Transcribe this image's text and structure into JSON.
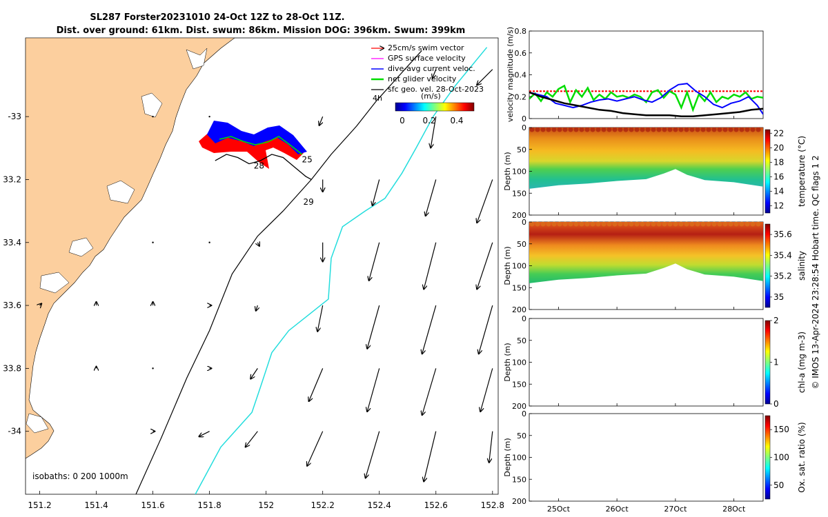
{
  "title": {
    "line1": "SL287 Forster20231010 24-Oct 12Z to 28-Oct 11Z.",
    "line2": "Dist. over ground: 61km. Dist. swum: 86km. Mission DOG: 396km. Swum: 399km"
  },
  "credit": "© IMOS 13-Apr-2024 23:28:54 Hobart time. QC flags 1 2",
  "colors": {
    "land": "#fccf9e",
    "swim_vector": "#ff0000",
    "gps_velocity": "#ff00ff",
    "dive_avg": "#0000ff",
    "net_velocity": "#00dd00",
    "geo_vel": "#000000",
    "isobath_200": "#000000",
    "isobath_1000": "#22dddd",
    "threshold": "#ff0000",
    "temp_warm": "#c84a14",
    "temp_cool": "#2ab6b0"
  },
  "chart_data": [
    {
      "id": "map",
      "type": "scatter",
      "xlabel": "",
      "ylabel": "",
      "xlim": [
        151.15,
        152.82
      ],
      "ylim": [
        -34.2,
        -32.75
      ],
      "x_ticks": [
        "151.2",
        "151.4",
        "151.6",
        "151.8",
        "152",
        "152.2",
        "152.4",
        "152.6",
        "152.8"
      ],
      "x_tick_values": [
        151.2,
        151.4,
        151.6,
        151.8,
        152.0,
        152.2,
        152.4,
        152.6,
        152.8
      ],
      "y_ticks": [
        "-33",
        "33.2",
        "33.4",
        "33.6",
        "33.8",
        "-34"
      ],
      "y_tick_values": [
        -33.0,
        -33.2,
        -33.4,
        -33.6,
        -33.8,
        -34.0
      ],
      "legend": {
        "placement": "top-right",
        "entries": [
          "25cm/s swim vector",
          "GPS surface velocity",
          "dive-avg current veloc.",
          "net glider velocity",
          "sfc geo. vel. 28-Oct-2023"
        ],
        "extra": "4h"
      },
      "colorbar": {
        "label": "(m/s)",
        "ticks": [
          "0",
          "0.2",
          "0.4"
        ]
      },
      "isobath_label": "isobaths: 0   200  1000m",
      "day_labels": [
        {
          "text": "28",
          "lon": 151.975,
          "lat": -33.165
        },
        {
          "text": "25",
          "lon": 152.145,
          "lat": -33.145
        },
        {
          "text": "29",
          "lon": 152.15,
          "lat": -33.28
        }
      ],
      "isobath_200": [
        [
          151.54,
          -34.2
        ],
        [
          151.63,
          -34.02
        ],
        [
          151.72,
          -33.83
        ],
        [
          151.8,
          -33.68
        ],
        [
          151.88,
          -33.5
        ],
        [
          151.97,
          -33.38
        ],
        [
          152.06,
          -33.3
        ],
        [
          152.16,
          -33.2
        ],
        [
          152.23,
          -33.12
        ],
        [
          152.32,
          -33.03
        ],
        [
          152.39,
          -32.95
        ],
        [
          152.46,
          -32.88
        ],
        [
          152.55,
          -32.79
        ]
      ],
      "isobath_1000": [
        [
          151.75,
          -34.2
        ],
        [
          151.84,
          -34.05
        ],
        [
          151.95,
          -33.94
        ],
        [
          151.98,
          -33.86
        ],
        [
          152.02,
          -33.75
        ],
        [
          152.08,
          -33.68
        ],
        [
          152.15,
          -33.63
        ],
        [
          152.22,
          -33.58
        ],
        [
          152.23,
          -33.45
        ],
        [
          152.27,
          -33.35
        ],
        [
          152.35,
          -33.3
        ],
        [
          152.42,
          -33.26
        ],
        [
          152.48,
          -33.18
        ],
        [
          152.53,
          -33.1
        ],
        [
          152.59,
          -33.0
        ],
        [
          152.67,
          -32.9
        ],
        [
          152.78,
          -32.78
        ]
      ],
      "geo_vectors": [
        {
          "lon": 151.2,
          "lat": -33.6,
          "u": 0.01,
          "v": 0.01
        },
        {
          "lon": 151.4,
          "lat": -33.6,
          "u": 0.0,
          "v": 0.02
        },
        {
          "lon": 151.6,
          "lat": -33.6,
          "u": 0.0,
          "v": 0.02
        },
        {
          "lon": 151.8,
          "lat": -33.6,
          "u": 0.01,
          "v": 0.0
        },
        {
          "lon": 151.97,
          "lat": -33.6,
          "u": -0.01,
          "v": -0.03
        },
        {
          "lon": 151.4,
          "lat": -33.8,
          "u": 0.0,
          "v": 0.01
        },
        {
          "lon": 151.6,
          "lat": -33.8,
          "u": 0.0,
          "v": 0.0
        },
        {
          "lon": 151.8,
          "lat": -33.8,
          "u": 0.01,
          "v": 0.0
        },
        {
          "lon": 151.97,
          "lat": -33.8,
          "u": -0.04,
          "v": -0.06
        },
        {
          "lon": 151.6,
          "lat": -34.0,
          "u": 0.01,
          "v": 0.0
        },
        {
          "lon": 151.8,
          "lat": -34.0,
          "u": -0.06,
          "v": -0.03
        },
        {
          "lon": 151.97,
          "lat": -34.0,
          "u": -0.07,
          "v": -0.09
        },
        {
          "lon": 151.8,
          "lat": -33.4,
          "u": 0.0,
          "v": 0.0
        },
        {
          "lon": 151.6,
          "lat": -33.4,
          "u": 0.0,
          "v": 0.0
        },
        {
          "lon": 151.6,
          "lat": -33.0,
          "u": 0.0,
          "v": 0.0
        },
        {
          "lon": 151.8,
          "lat": -33.0,
          "u": 0.0,
          "v": 0.0
        },
        {
          "lon": 151.97,
          "lat": -33.4,
          "u": 0.01,
          "v": -0.02
        },
        {
          "lon": 152.2,
          "lat": -33.0,
          "u": -0.02,
          "v": -0.05
        },
        {
          "lon": 152.2,
          "lat": -33.2,
          "u": 0.0,
          "v": -0.07
        },
        {
          "lon": 152.2,
          "lat": -33.4,
          "u": 0.0,
          "v": -0.11
        },
        {
          "lon": 152.2,
          "lat": -33.6,
          "u": -0.03,
          "v": -0.15
        },
        {
          "lon": 152.2,
          "lat": -33.8,
          "u": -0.08,
          "v": -0.19
        },
        {
          "lon": 152.2,
          "lat": -34.0,
          "u": -0.09,
          "v": -0.2
        },
        {
          "lon": 152.4,
          "lat": -33.2,
          "u": -0.04,
          "v": -0.15
        },
        {
          "lon": 152.4,
          "lat": -33.4,
          "u": -0.06,
          "v": -0.22
        },
        {
          "lon": 152.4,
          "lat": -33.6,
          "u": -0.07,
          "v": -0.25
        },
        {
          "lon": 152.4,
          "lat": -33.8,
          "u": -0.07,
          "v": -0.25
        },
        {
          "lon": 152.4,
          "lat": -34.0,
          "u": -0.08,
          "v": -0.27
        },
        {
          "lon": 152.6,
          "lat": -32.85,
          "u": -0.02,
          "v": -0.05
        },
        {
          "lon": 152.6,
          "lat": -33.0,
          "u": -0.03,
          "v": -0.18
        },
        {
          "lon": 152.6,
          "lat": -33.2,
          "u": -0.06,
          "v": -0.21
        },
        {
          "lon": 152.6,
          "lat": -33.4,
          "u": -0.07,
          "v": -0.27
        },
        {
          "lon": 152.6,
          "lat": -33.6,
          "u": -0.08,
          "v": -0.28
        },
        {
          "lon": 152.6,
          "lat": -33.8,
          "u": -0.08,
          "v": -0.27
        },
        {
          "lon": 152.6,
          "lat": -34.0,
          "u": -0.07,
          "v": -0.29
        },
        {
          "lon": 152.8,
          "lat": -32.85,
          "u": -0.09,
          "v": -0.09
        },
        {
          "lon": 152.8,
          "lat": -33.2,
          "u": -0.09,
          "v": -0.25
        },
        {
          "lon": 152.8,
          "lat": -33.4,
          "u": -0.09,
          "v": -0.27
        },
        {
          "lon": 152.8,
          "lat": -33.6,
          "u": -0.08,
          "v": -0.28
        },
        {
          "lon": 152.8,
          "lat": -33.8,
          "u": -0.07,
          "v": -0.25
        },
        {
          "lon": 152.8,
          "lat": -34.0,
          "u": -0.02,
          "v": -0.18
        }
      ],
      "track": [
        [
          151.82,
          -33.14
        ],
        [
          151.86,
          -33.12
        ],
        [
          151.9,
          -33.13
        ],
        [
          151.94,
          -33.15
        ],
        [
          151.98,
          -33.14
        ],
        [
          152.02,
          -33.12
        ],
        [
          152.06,
          -33.13
        ],
        [
          152.1,
          -33.16
        ],
        [
          152.14,
          -33.19
        ],
        [
          152.16,
          -33.2
        ]
      ]
    },
    {
      "id": "velocity",
      "type": "line",
      "xlabel": "",
      "ylabel": "velocity magnitude (m/s)",
      "ylim": [
        0,
        0.8
      ],
      "y_ticks": [
        "0",
        "0.2",
        "0.4",
        "0.6",
        "0.8"
      ],
      "y_tick_values": [
        0,
        0.2,
        0.4,
        0.6,
        0.8
      ],
      "x_ticks": [
        "25Oct",
        "26Oct",
        "27Oct",
        "28Oct"
      ],
      "x_tick_values": [
        0.5,
        1.5,
        2.5,
        3.5
      ],
      "xlim": [
        0,
        4
      ],
      "threshold": 0.25,
      "series": [
        {
          "color": "#00dd00",
          "x": [
            0,
            0.1,
            0.2,
            0.3,
            0.4,
            0.5,
            0.6,
            0.7,
            0.8,
            0.9,
            1.0,
            1.1,
            1.2,
            1.3,
            1.4,
            1.5,
            1.6,
            1.7,
            1.8,
            1.9,
            2.0,
            2.1,
            2.2,
            2.3,
            2.4,
            2.5,
            2.6,
            2.7,
            2.8,
            2.9,
            3.0,
            3.1,
            3.2,
            3.3,
            3.4,
            3.5,
            3.6,
            3.7,
            3.8,
            3.9,
            4.0
          ],
          "y": [
            0.18,
            0.23,
            0.16,
            0.24,
            0.2,
            0.27,
            0.3,
            0.15,
            0.26,
            0.2,
            0.28,
            0.17,
            0.22,
            0.18,
            0.24,
            0.2,
            0.21,
            0.19,
            0.22,
            0.2,
            0.15,
            0.24,
            0.26,
            0.19,
            0.25,
            0.22,
            0.1,
            0.24,
            0.08,
            0.22,
            0.16,
            0.24,
            0.15,
            0.2,
            0.18,
            0.22,
            0.2,
            0.24,
            0.18,
            0.2,
            0.19
          ]
        },
        {
          "color": "#0000ff",
          "x": [
            0,
            0.15,
            0.3,
            0.45,
            0.6,
            0.75,
            0.9,
            1.05,
            1.2,
            1.35,
            1.5,
            1.65,
            1.8,
            1.95,
            2.1,
            2.25,
            2.4,
            2.55,
            2.7,
            2.85,
            3.0,
            3.15,
            3.3,
            3.45,
            3.6,
            3.75,
            3.9,
            4.0
          ],
          "y": [
            0.24,
            0.22,
            0.2,
            0.14,
            0.12,
            0.1,
            0.12,
            0.15,
            0.17,
            0.18,
            0.16,
            0.18,
            0.2,
            0.17,
            0.15,
            0.19,
            0.26,
            0.31,
            0.32,
            0.25,
            0.2,
            0.13,
            0.1,
            0.14,
            0.16,
            0.2,
            0.12,
            0.04
          ]
        },
        {
          "color": "#000000",
          "x": [
            0,
            0.2,
            0.4,
            0.6,
            0.8,
            1.0,
            1.2,
            1.4,
            1.6,
            1.8,
            2.0,
            2.2,
            2.4,
            2.6,
            2.8,
            3.0,
            3.2,
            3.4,
            3.6,
            3.8,
            4.0
          ],
          "y": [
            0.24,
            0.2,
            0.17,
            0.14,
            0.12,
            0.1,
            0.08,
            0.07,
            0.05,
            0.04,
            0.03,
            0.03,
            0.03,
            0.02,
            0.02,
            0.03,
            0.04,
            0.05,
            0.06,
            0.08,
            0.09
          ]
        }
      ]
    },
    {
      "id": "temperature",
      "type": "heatmap",
      "xlabel": "",
      "ylabel": "Depth (m)",
      "colorbar_label": "temperature (°C)",
      "ylim": [
        200,
        0
      ],
      "y_ticks": [
        "0",
        "50",
        "100",
        "150",
        "200"
      ],
      "y_tick_values": [
        0,
        50,
        100,
        150,
        200
      ],
      "colorbar_ticks": [
        "12",
        "14",
        "16",
        "18",
        "20",
        "22"
      ],
      "colorbar_tick_values": [
        12,
        14,
        16,
        18,
        20,
        22
      ],
      "colorbar_range": [
        11,
        22.5
      ],
      "bottom_depth": [
        [
          0,
          140
        ],
        [
          0.5,
          132
        ],
        [
          1.0,
          128
        ],
        [
          1.5,
          122
        ],
        [
          2.0,
          118
        ],
        [
          2.3,
          105
        ],
        [
          2.5,
          95
        ],
        [
          2.7,
          108
        ],
        [
          3.0,
          120
        ],
        [
          3.5,
          125
        ],
        [
          4.0,
          135
        ]
      ],
      "layers": [
        {
          "top": 0,
          "bottom": 25,
          "value": 21.5
        },
        {
          "top": 25,
          "bottom": 60,
          "value": 20.5
        },
        {
          "top": 60,
          "bottom": 85,
          "value": 19.5
        },
        {
          "top": 85,
          "bottom": 105,
          "value": 17.5
        },
        {
          "top": 105,
          "bottom": 150,
          "value": 16.0
        }
      ]
    },
    {
      "id": "salinity",
      "type": "heatmap",
      "xlabel": "",
      "ylabel": "Depth (m)",
      "colorbar_label": "salinity",
      "ylim": [
        200,
        0
      ],
      "y_ticks": [
        "0",
        "50",
        "100",
        "150",
        "200"
      ],
      "y_tick_values": [
        0,
        50,
        100,
        150,
        200
      ],
      "colorbar_ticks": [
        "35",
        "35.2",
        "35.4",
        "35.6"
      ],
      "colorbar_tick_values": [
        35,
        35.2,
        35.4,
        35.6
      ],
      "colorbar_range": [
        34.9,
        35.7
      ],
      "bottom_depth": [
        [
          0,
          140
        ],
        [
          0.5,
          132
        ],
        [
          1.0,
          128
        ],
        [
          1.5,
          122
        ],
        [
          2.0,
          118
        ],
        [
          2.3,
          105
        ],
        [
          2.5,
          95
        ],
        [
          2.7,
          108
        ],
        [
          3.0,
          120
        ],
        [
          3.5,
          125
        ],
        [
          4.0,
          135
        ]
      ],
      "layers": [
        {
          "top": 0,
          "bottom": 20,
          "value": 35.6
        },
        {
          "top": 20,
          "bottom": 55,
          "value": 35.62
        },
        {
          "top": 55,
          "bottom": 85,
          "value": 35.5
        },
        {
          "top": 85,
          "bottom": 110,
          "value": 35.35
        },
        {
          "top": 110,
          "bottom": 150,
          "value": 35.22
        }
      ]
    },
    {
      "id": "chla",
      "type": "heatmap",
      "xlabel": "",
      "ylabel": "Depth (m)",
      "colorbar_label": "chl-a (mg m-3)",
      "ylim": [
        200,
        0
      ],
      "y_ticks": [
        "0",
        "50",
        "100",
        "150",
        "200"
      ],
      "y_tick_values": [
        0,
        50,
        100,
        150,
        200
      ],
      "colorbar_ticks": [
        "0",
        "1",
        "2"
      ],
      "colorbar_tick_values": [
        0,
        1,
        2
      ],
      "colorbar_range": [
        0,
        2
      ]
    },
    {
      "id": "oxygen",
      "type": "heatmap",
      "xlabel": "",
      "ylabel": "Depth (m)",
      "colorbar_label": "Ox. sat. ratio (%)",
      "ylim": [
        200,
        0
      ],
      "y_ticks": [
        "0",
        "50",
        "100",
        "150",
        "200"
      ],
      "y_tick_values": [
        0,
        50,
        100,
        150,
        200
      ],
      "colorbar_ticks": [
        "50",
        "100",
        "150"
      ],
      "colorbar_tick_values": [
        50,
        100,
        150
      ],
      "colorbar_range": [
        25,
        175
      ],
      "x_ticks": [
        "25Oct",
        "26Oct",
        "27Oct",
        "28Oct"
      ],
      "x_tick_values": [
        0.5,
        1.5,
        2.5,
        3.5
      ],
      "xlim": [
        0,
        4
      ]
    }
  ]
}
